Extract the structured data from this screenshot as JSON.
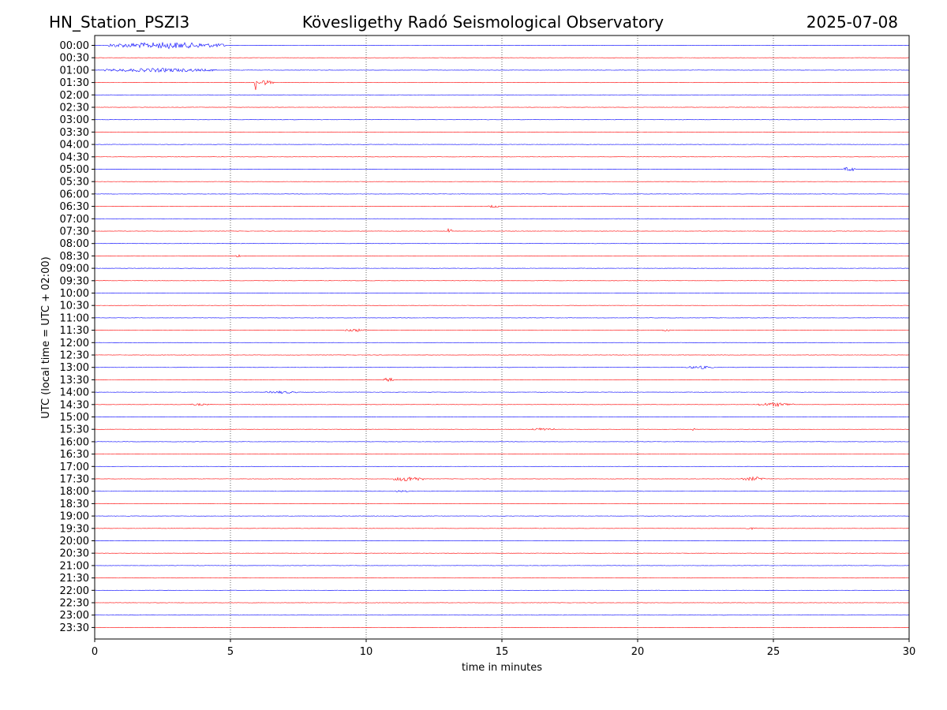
{
  "header": {
    "station": "HN_Station_PSZI3",
    "observatory": "Kövesligethy Radó Seismological Observatory",
    "date": "2025-07-08"
  },
  "chart_data": {
    "type": "line",
    "xlabel": "time in minutes",
    "ylabel": "UTC (local time = UTC + 02:00)",
    "xlim": [
      0,
      30
    ],
    "xticks": [
      0,
      5,
      10,
      15,
      20,
      25,
      30
    ],
    "grid": "vertical dotted at each x tick",
    "trace_colors": [
      "#0000ff",
      "#ff0000"
    ],
    "rows": [
      "00:00",
      "00:30",
      "01:00",
      "01:30",
      "02:00",
      "02:30",
      "03:00",
      "03:30",
      "04:00",
      "04:30",
      "05:00",
      "05:30",
      "06:00",
      "06:30",
      "07:00",
      "07:30",
      "08:00",
      "08:30",
      "09:00",
      "09:30",
      "10:00",
      "10:30",
      "11:00",
      "11:30",
      "12:00",
      "12:30",
      "13:00",
      "13:30",
      "14:00",
      "14:30",
      "15:00",
      "15:30",
      "16:00",
      "16:30",
      "17:00",
      "17:30",
      "18:00",
      "18:30",
      "19:00",
      "19:30",
      "20:00",
      "20:30",
      "21:00",
      "21:30",
      "22:00",
      "22:30",
      "23:00",
      "23:30"
    ],
    "events": [
      {
        "row": "00:00",
        "start": 0.5,
        "end": 4.8,
        "amplitude": 0.25
      },
      {
        "row": "01:00",
        "start": 0.3,
        "end": 4.5,
        "amplitude": 0.15
      },
      {
        "row": "01:30",
        "start": 5.88,
        "end": 5.95,
        "amplitude": 1.0
      },
      {
        "row": "01:30",
        "start": 5.95,
        "end": 6.6,
        "amplitude": 0.2
      },
      {
        "row": "05:00",
        "start": 27.6,
        "end": 28.0,
        "amplitude": 0.2
      },
      {
        "row": "06:30",
        "start": 14.5,
        "end": 14.9,
        "amplitude": 0.12
      },
      {
        "row": "07:30",
        "start": 13.0,
        "end": 13.15,
        "amplitude": 0.3
      },
      {
        "row": "08:30",
        "start": 5.2,
        "end": 5.35,
        "amplitude": 0.15
      },
      {
        "row": "11:30",
        "start": 9.2,
        "end": 10.0,
        "amplitude": 0.12
      },
      {
        "row": "11:30",
        "start": 20.9,
        "end": 21.2,
        "amplitude": 0.1
      },
      {
        "row": "13:00",
        "start": 21.8,
        "end": 22.8,
        "amplitude": 0.12
      },
      {
        "row": "13:30",
        "start": 10.6,
        "end": 11.0,
        "amplitude": 0.2
      },
      {
        "row": "14:00",
        "start": 6.3,
        "end": 7.5,
        "amplitude": 0.1
      },
      {
        "row": "14:30",
        "start": 24.4,
        "end": 25.8,
        "amplitude": 0.15
      },
      {
        "row": "14:30",
        "start": 3.5,
        "end": 4.2,
        "amplitude": 0.08
      },
      {
        "row": "15:30",
        "start": 16.1,
        "end": 17.0,
        "amplitude": 0.12
      },
      {
        "row": "15:30",
        "start": 21.9,
        "end": 22.1,
        "amplitude": 0.15
      },
      {
        "row": "17:30",
        "start": 11.0,
        "end": 12.1,
        "amplitude": 0.2
      },
      {
        "row": "17:30",
        "start": 23.8,
        "end": 24.8,
        "amplitude": 0.15
      },
      {
        "row": "18:00",
        "start": 11.0,
        "end": 11.6,
        "amplitude": 0.08
      },
      {
        "row": "19:30",
        "start": 24.0,
        "end": 24.4,
        "amplitude": 0.08
      }
    ]
  }
}
